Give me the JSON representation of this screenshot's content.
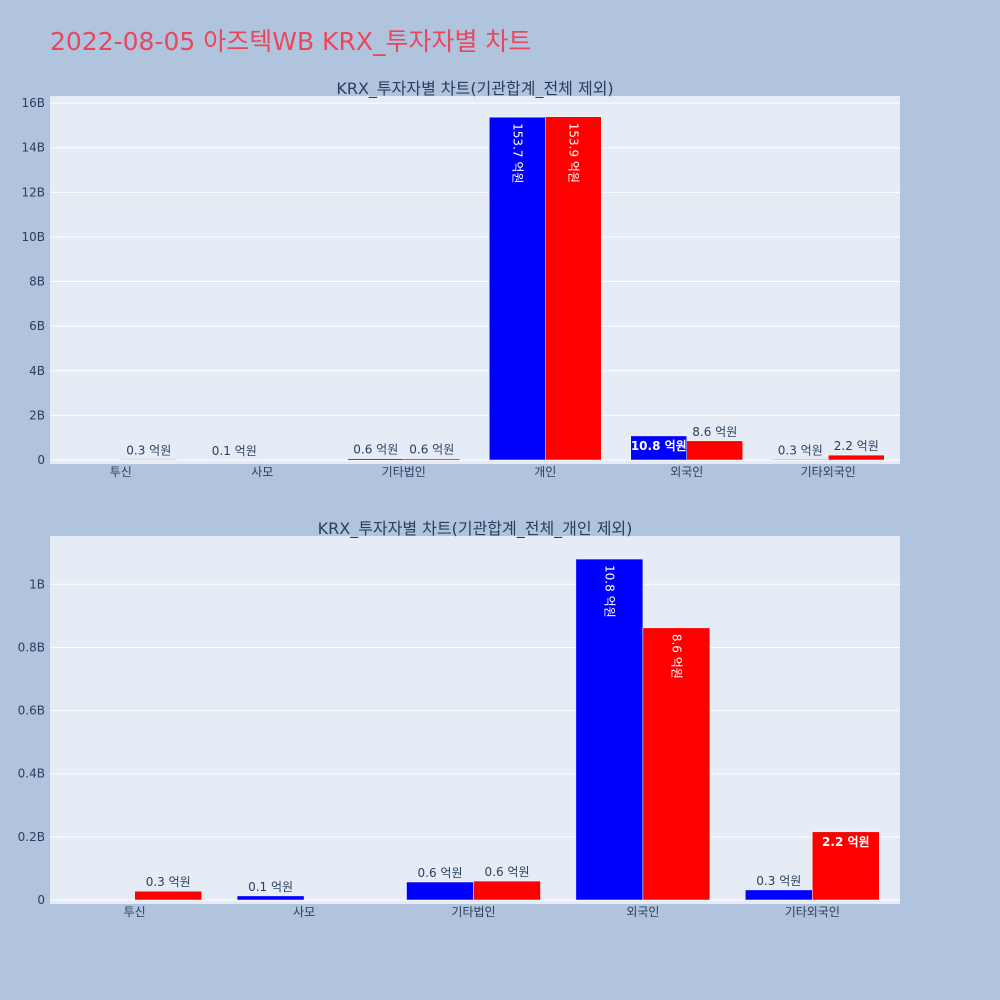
{
  "page": {
    "title": "2022-08-05 아즈텍WB KRX_투자자별 차트"
  },
  "colors": {
    "background": "#b0c4de",
    "plot_bg": "#e5ecf6",
    "grid": "#ffffff",
    "buy": "#0000ff",
    "sell": "#ff0000",
    "title": "#e8475e",
    "text": "#2a3f5f"
  },
  "chart_data": [
    {
      "type": "bar",
      "title": "KRX_투자자별 차트(기관합계_전체 제외)",
      "categories": [
        "투신",
        "사모",
        "기타법인",
        "개인",
        "외국인",
        "기타외국인"
      ],
      "series": [
        {
          "values": [
            0,
            0.01,
            0.06,
            15.37,
            1.08,
            0.03
          ],
          "labels": [
            "",
            "0.1 억원",
            "0.6 억원",
            "153.7 억원",
            "10.8 억원",
            "0.3 억원"
          ],
          "color": "#0000ff"
        },
        {
          "values": [
            0.03,
            0,
            0.06,
            15.39,
            0.86,
            0.22
          ],
          "labels": [
            "0.3 억원",
            "",
            "0.6 억원",
            "153.9 억원",
            "8.6 억원",
            "2.2 억원"
          ],
          "color": "#ff0000"
        }
      ],
      "yticks": [
        "0",
        "2B",
        "4B",
        "6B",
        "8B",
        "10B",
        "12B",
        "14B",
        "16B"
      ],
      "ytick_values": [
        0,
        2,
        4,
        6,
        8,
        10,
        12,
        14,
        16
      ],
      "ylim": [
        0,
        16.05
      ],
      "unit": "B",
      "grid": true
    },
    {
      "type": "bar",
      "title": "KRX_투자자별 차트(기관합계_전체_개인 제외)",
      "categories": [
        "투신",
        "사모",
        "기타법인",
        "외국인",
        "기타외국인"
      ],
      "series": [
        {
          "values": [
            0,
            0.013,
            0.057,
            1.08,
            0.032
          ],
          "labels": [
            "",
            "0.1 억원",
            "0.6 억원",
            "10.8 억원",
            "0.3 억원"
          ],
          "color": "#0000ff"
        },
        {
          "values": [
            0.028,
            0,
            0.06,
            0.862,
            0.216
          ],
          "labels": [
            "0.3 억원",
            "",
            "0.6 억원",
            "8.6 억원",
            "2.2 억원"
          ],
          "color": "#ff0000"
        }
      ],
      "yticks": [
        "0",
        "0.2B",
        "0.4B",
        "0.6B",
        "0.8B",
        "1B"
      ],
      "ytick_values": [
        0,
        0.2,
        0.4,
        0.6,
        0.8,
        1.0
      ],
      "ylim": [
        0,
        1.134
      ],
      "unit": "B",
      "grid": true
    }
  ]
}
